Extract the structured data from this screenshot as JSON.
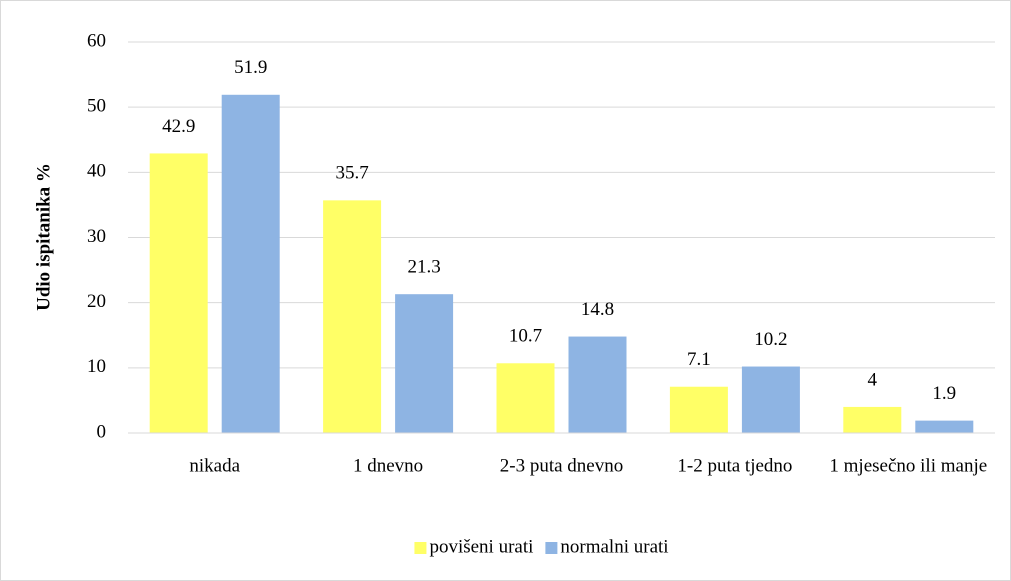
{
  "chart_data": {
    "type": "bar",
    "y_label": "Udio ispitanika %",
    "categories": [
      "nikada",
      "1 dnevno",
      "2-3 puta dnevno",
      "1-2 puta tjedno",
      "1 mjesečno ili manje"
    ],
    "series": [
      {
        "name": "povišeni urati",
        "color": "#ffff66",
        "values": [
          42.9,
          35.7,
          10.7,
          7.1,
          4
        ]
      },
      {
        "name": "normalni urati",
        "color": "#8eb4e3",
        "values": [
          51.9,
          21.3,
          14.8,
          10.2,
          1.9
        ]
      }
    ],
    "ylim": [
      0,
      60
    ],
    "yticks": [
      0,
      10,
      20,
      30,
      40,
      50,
      60
    ],
    "grid": true,
    "legend": "bottom"
  }
}
